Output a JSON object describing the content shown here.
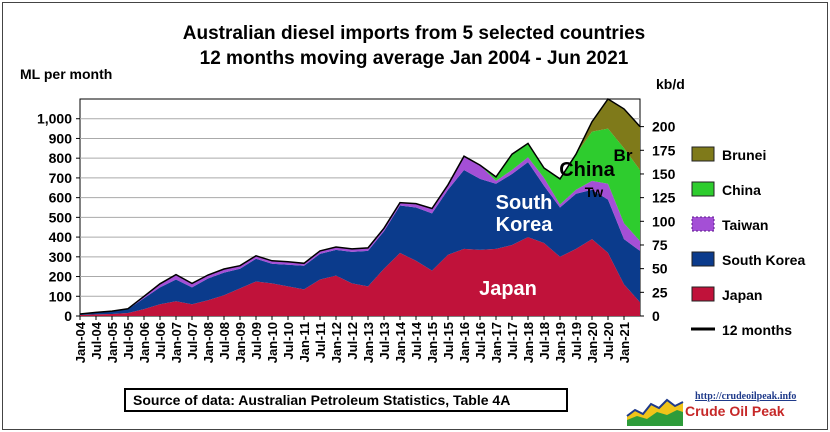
{
  "chart_data": {
    "type": "area",
    "title": "Australian diesel imports from 5 selected countries",
    "subtitle": "12 months moving average Jan 2004 - Jun 2021",
    "ylabel_left": "ML per month",
    "ylabel_right": "kb/d",
    "ylim_left": [
      0,
      1100
    ],
    "yticks_left": [
      "0",
      "100",
      "200",
      "300",
      "400",
      "500",
      "600",
      "700",
      "800",
      "900",
      "1,000"
    ],
    "ylim_right": [
      0,
      225
    ],
    "yticks_right": [
      "0",
      "25",
      "50",
      "75",
      "100",
      "125",
      "150",
      "175",
      "200"
    ],
    "x_tick_labels": [
      "Jan-04",
      "Jul-04",
      "Jan-05",
      "Jul-05",
      "Jan-06",
      "Jul-06",
      "Jan-07",
      "Jul-07",
      "Jan-08",
      "Jul-08",
      "Jan-09",
      "Jul-09",
      "Jan-10",
      "Jul-10",
      "Jan-11",
      "Jul-11",
      "Jan-12",
      "Jul-12",
      "Jan-13",
      "Jul-13",
      "Jan-14",
      "Jul-14",
      "Jan-15",
      "Jul-15",
      "Jan-16",
      "Jul-16",
      "Jan-17",
      "Jul-17",
      "Jan-18",
      "Jul-18",
      "Jan-19",
      "Jul-19",
      "Jan-20",
      "Jul-20",
      "Jan-21"
    ],
    "x": [
      "2004-01",
      "2004-07",
      "2005-01",
      "2005-07",
      "2006-01",
      "2006-07",
      "2007-01",
      "2007-07",
      "2008-01",
      "2008-07",
      "2009-01",
      "2009-07",
      "2010-01",
      "2010-07",
      "2011-01",
      "2011-07",
      "2012-01",
      "2012-07",
      "2013-01",
      "2013-07",
      "2014-01",
      "2014-07",
      "2015-01",
      "2015-07",
      "2016-01",
      "2016-07",
      "2017-01",
      "2017-07",
      "2018-01",
      "2018-07",
      "2019-01",
      "2019-07",
      "2020-01",
      "2020-07",
      "2021-01",
      "2021-06"
    ],
    "grid": true,
    "legend_position": "right",
    "series": [
      {
        "name": "Japan",
        "color": "#c0123a",
        "values": [
          5,
          8,
          10,
          15,
          35,
          60,
          75,
          60,
          80,
          105,
          140,
          175,
          165,
          150,
          135,
          185,
          205,
          165,
          150,
          240,
          320,
          280,
          230,
          310,
          340,
          335,
          340,
          360,
          400,
          370,
          300,
          340,
          390,
          320,
          160,
          70
        ]
      },
      {
        "name": "South Korea",
        "color": "#0b3b8c",
        "values": [
          5,
          10,
          15,
          20,
          55,
          85,
          110,
          85,
          110,
          115,
          100,
          115,
          100,
          110,
          120,
          130,
          130,
          160,
          180,
          190,
          240,
          270,
          290,
          330,
          400,
          360,
          330,
          360,
          380,
          290,
          250,
          280,
          250,
          270,
          230,
          260
        ]
      },
      {
        "name": "Taiwan",
        "color": "#a44fd6",
        "values": [
          0,
          0,
          0,
          2,
          10,
          18,
          25,
          20,
          18,
          18,
          15,
          15,
          15,
          15,
          12,
          15,
          15,
          15,
          15,
          15,
          15,
          20,
          25,
          25,
          70,
          70,
          15,
          20,
          25,
          40,
          15,
          20,
          45,
          80,
          80,
          50
        ]
      },
      {
        "name": "China",
        "color": "#2ecc2e",
        "values": [
          0,
          0,
          0,
          0,
          0,
          0,
          0,
          0,
          0,
          0,
          0,
          0,
          0,
          0,
          0,
          0,
          0,
          0,
          0,
          0,
          0,
          0,
          0,
          0,
          0,
          0,
          20,
          80,
          70,
          50,
          130,
          180,
          250,
          280,
          380,
          360
        ]
      },
      {
        "name": "Brunei",
        "color": "#7f7a1a",
        "values": [
          0,
          0,
          0,
          0,
          0,
          0,
          0,
          0,
          0,
          0,
          0,
          0,
          0,
          0,
          0,
          0,
          0,
          0,
          0,
          0,
          0,
          0,
          0,
          0,
          0,
          0,
          0,
          0,
          0,
          0,
          0,
          0,
          50,
          150,
          200,
          220
        ]
      }
    ],
    "line": {
      "name": "12 months",
      "color": "#000000",
      "values": [
        10,
        18,
        25,
        37,
        100,
        163,
        210,
        165,
        208,
        238,
        255,
        305,
        280,
        275,
        267,
        330,
        350,
        340,
        345,
        445,
        575,
        570,
        545,
        665,
        810,
        765,
        705,
        820,
        875,
        750,
        695,
        820,
        985,
        1100,
        1050,
        960
      ]
    },
    "area_labels": [
      {
        "text": "Japan",
        "color": "#ffffff"
      },
      {
        "text": "South",
        "color": "#ffffff"
      },
      {
        "text": "Korea",
        "color": "#ffffff"
      },
      {
        "text": "China",
        "color": "#000000"
      },
      {
        "text": "Tw",
        "color": "#000000"
      },
      {
        "text": "Br",
        "color": "#000000"
      }
    ],
    "legend": [
      {
        "label": "Brunei",
        "color": "#7f7a1a",
        "kind": "box"
      },
      {
        "label": "China",
        "color": "#2ecc2e",
        "kind": "box"
      },
      {
        "label": "Taiwan",
        "color": "#a44fd6",
        "kind": "box"
      },
      {
        "label": "South Korea",
        "color": "#0b3b8c",
        "kind": "box"
      },
      {
        "label": "Japan",
        "color": "#c0123a",
        "kind": "box"
      },
      {
        "label": "12 months",
        "color": "#000000",
        "kind": "line"
      }
    ]
  },
  "source": "Source of data: Australian Petroleum Statistics, Table 4A",
  "logo": {
    "url": "http://crudeoilpeak.info",
    "name": "Crude Oil Peak",
    "icon": "oil-rig-chart-icon"
  }
}
